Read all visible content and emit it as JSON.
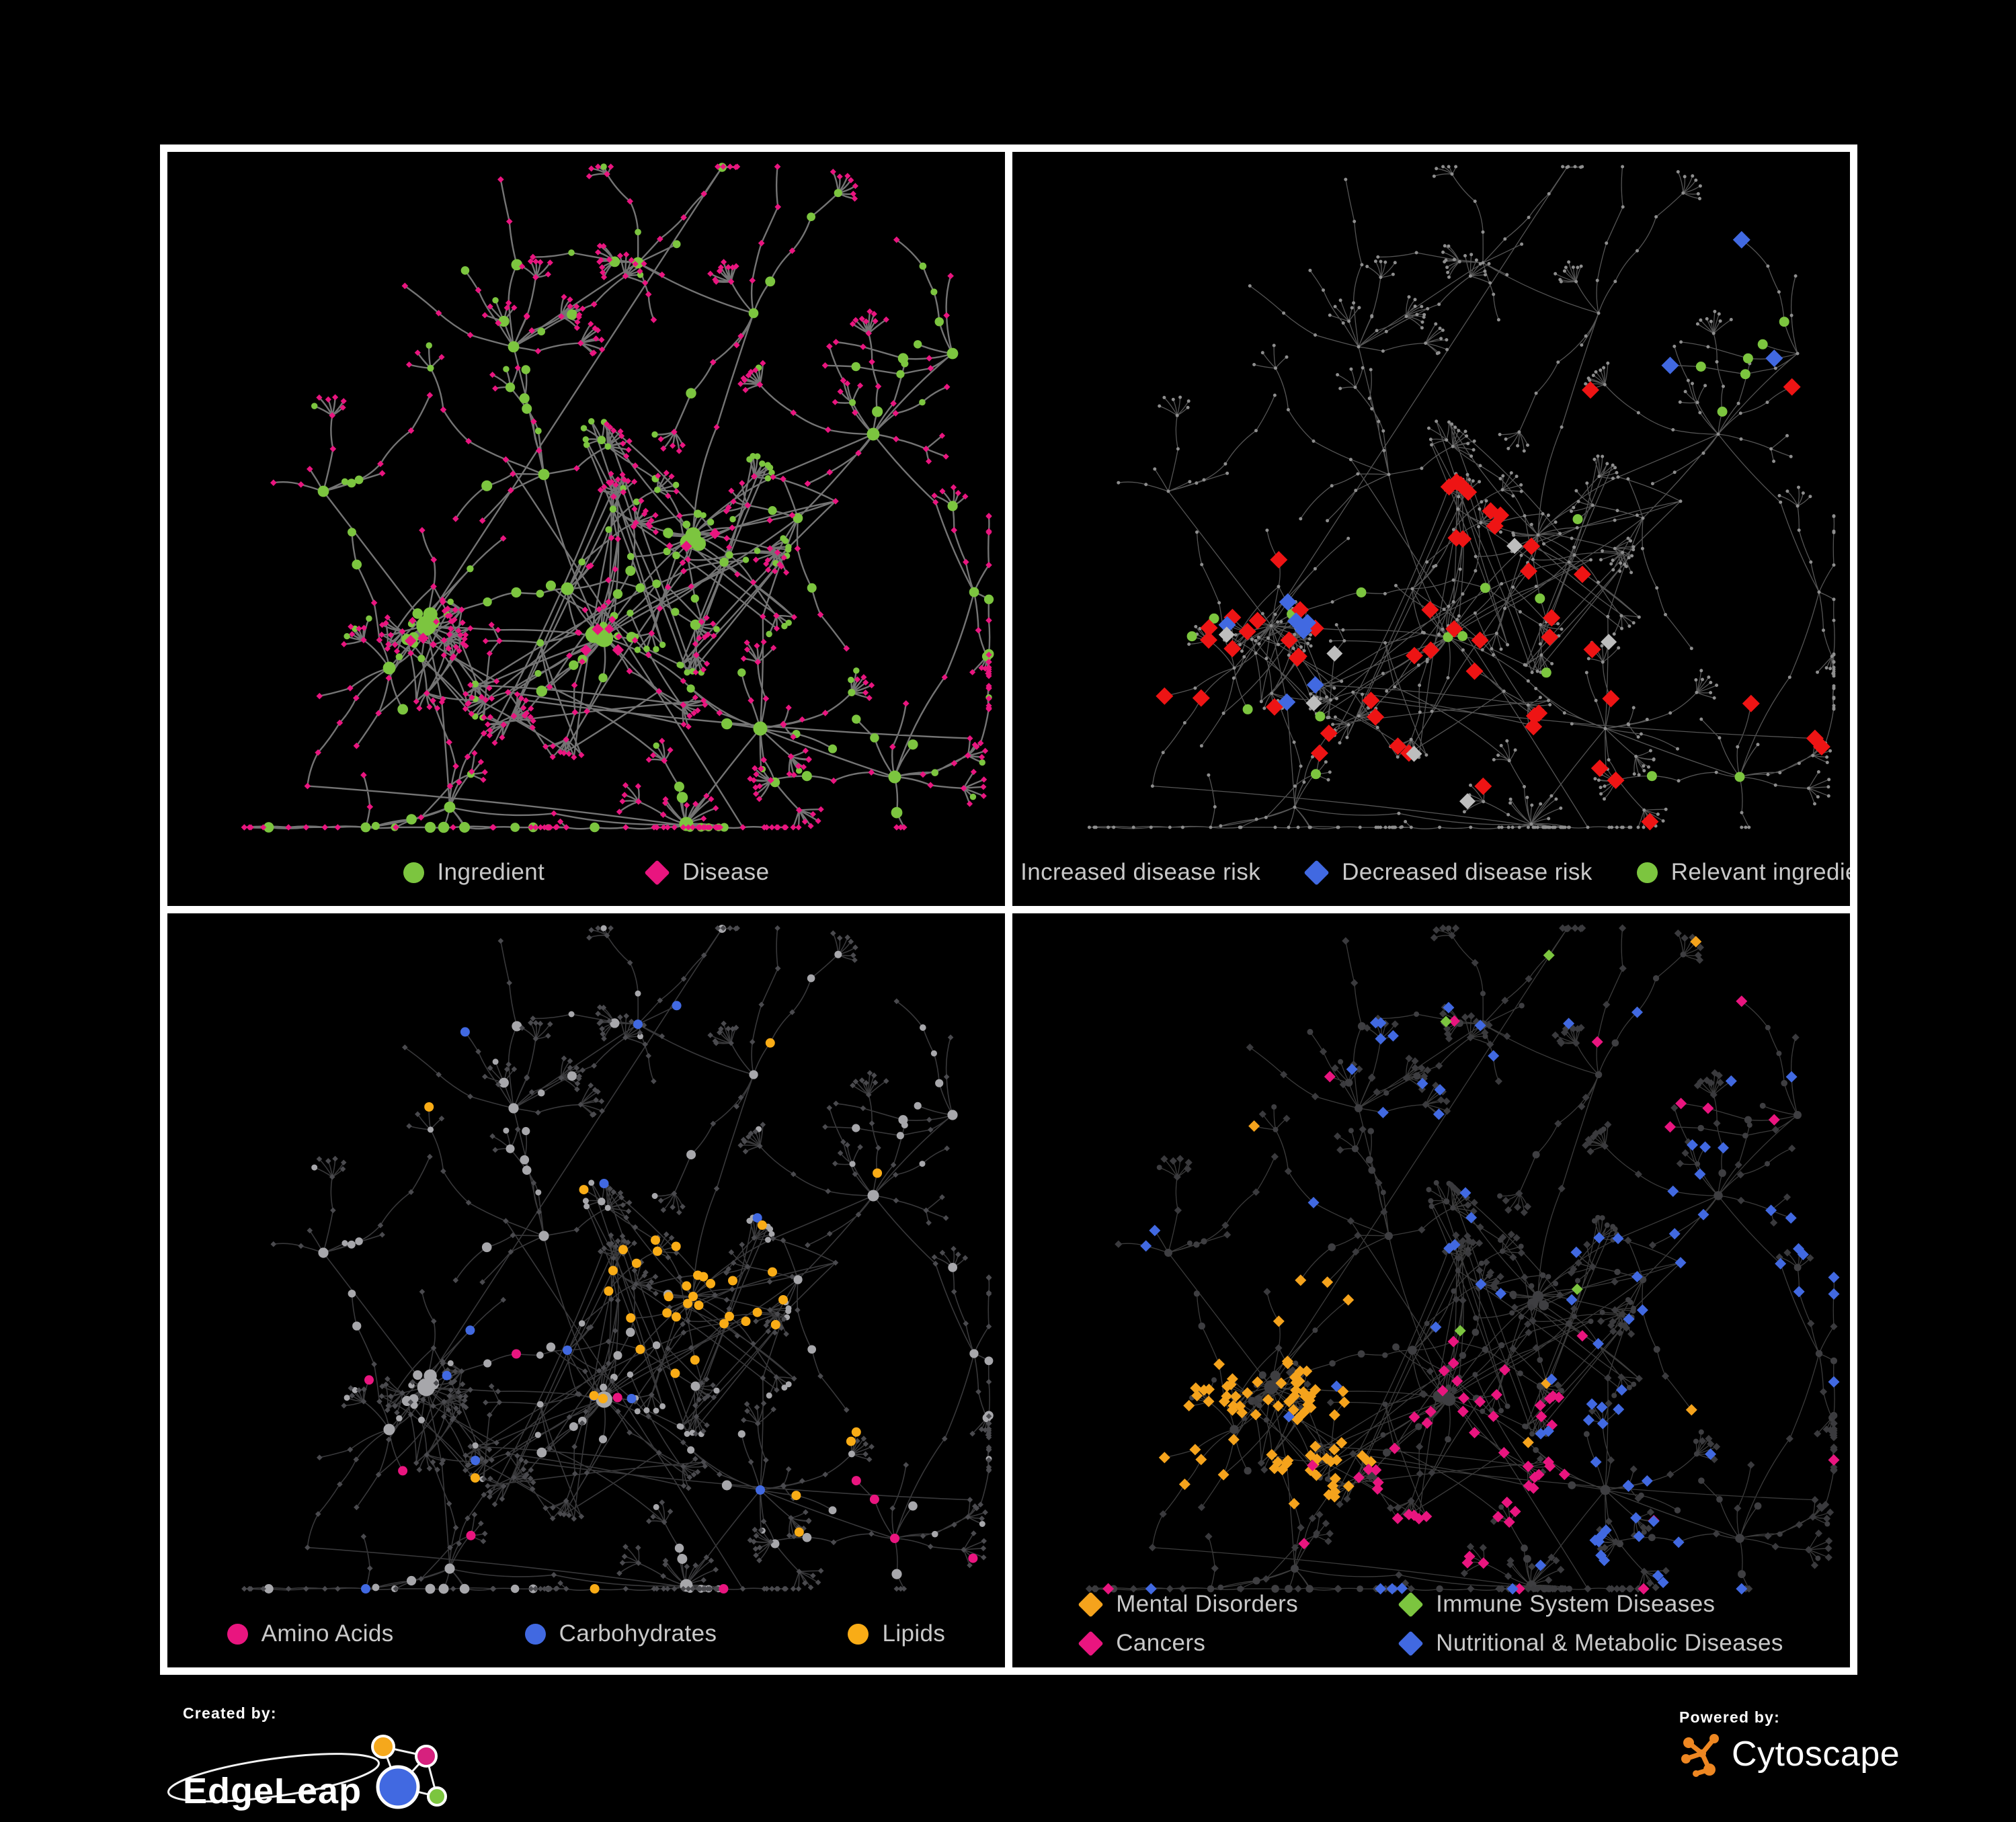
{
  "figure": {
    "background": "#000000",
    "frame_color": "#ffffff",
    "legend_text_color": "#C9C9C9"
  },
  "panels": [
    {
      "id": "ingredient-disease",
      "legend": [
        {
          "label": "Ingredient",
          "shape": "circle",
          "color": "#7CC53F"
        },
        {
          "label": "Disease",
          "shape": "diamond",
          "color": "#E9157F"
        }
      ]
    },
    {
      "id": "disease-risk",
      "legend": [
        {
          "label": "Increased disease risk",
          "shape": "diamond",
          "color": "#EE1414"
        },
        {
          "label": "Decreased disease risk",
          "shape": "diamond",
          "color": "#4169E1"
        },
        {
          "label": "Relevant ingredient",
          "shape": "circle",
          "color": "#7CC53F"
        }
      ]
    },
    {
      "id": "macronutrients",
      "legend": [
        {
          "label": "Amino Acids",
          "shape": "circle",
          "color": "#E9157F"
        },
        {
          "label": "Carbohydrates",
          "shape": "circle",
          "color": "#4169E1"
        },
        {
          "label": "Lipids",
          "shape": "circle",
          "color": "#F9AC16"
        }
      ]
    },
    {
      "id": "disease-categories",
      "legend_layout": "grid",
      "legend": [
        {
          "label": "Mental Disorders",
          "shape": "diamond",
          "color": "#F5A31C"
        },
        {
          "label": "Cancers",
          "shape": "diamond",
          "color": "#E9157F"
        },
        {
          "label": "Immune System Diseases",
          "shape": "diamond",
          "color": "#7CC53F"
        },
        {
          "label": "Nutritional & Metabolic Diseases",
          "shape": "diamond",
          "color": "#4169E1"
        }
      ]
    }
  ],
  "footer": {
    "created_by": {
      "label": "Created by:",
      "brand": "EdgeLeap"
    },
    "powered_by": {
      "label": "Powered by:",
      "brand": "Cytoscape"
    }
  },
  "chart_data": [
    {
      "type": "network",
      "panel": "top-left",
      "description": "Ingredient-disease association network: green circles are food ingredients (larger = higher degree hubs), magenta diamonds are diseases; grey curved edges link associated ingredient-disease pairs. Dense hairball clusters at centre-left and centre, star-shaped leaf fans of disease diamonds on the periphery.",
      "legend": [
        {
          "label": "Ingredient",
          "shape": "circle",
          "color": "#7CC53F",
          "approx_count": 200
        },
        {
          "label": "Disease",
          "shape": "diamond",
          "color": "#E9157F",
          "approx_count": 480
        }
      ],
      "approx_total_nodes": 680,
      "edge_color": "#7A7A7A",
      "layout": "organic force-directed, same topology as other three panels"
    },
    {
      "type": "network",
      "panel": "top-right",
      "description": "Same network rendered with all nodes as small dim grey dots; highlighted large diamonds mark disease-risk evidence and green circles mark relevant ingredients, concentrated in the two central clusters.",
      "legend": [
        {
          "label": "Increased disease risk",
          "shape": "diamond",
          "color": "#EE1414",
          "approx_count": 40
        },
        {
          "label": "Decreased disease risk",
          "shape": "diamond",
          "color": "#4169E1",
          "approx_count": 10
        },
        {
          "label": "Relevant ingredient",
          "shape": "circle",
          "color": "#7CC53F",
          "approx_count": 30
        }
      ],
      "also_visible": [
        {
          "label": "neutral / no effect",
          "shape": "diamond",
          "color": "#BDBDBD",
          "approx_count": 7
        }
      ],
      "edge_color": "#696969"
    },
    {
      "type": "network",
      "panel": "bottom-left",
      "description": "Same network with ingredients as grey circles and diseases as small dark-grey diamonds; ingredient nodes recoloured by macronutrient class - Lipids (orange, dense patch above centre plus scattered), Amino Acids (pink, scattered, extra in lower right), Carbohydrates (blue, few).",
      "legend": [
        {
          "label": "Amino Acids",
          "shape": "circle",
          "color": "#E9157F",
          "approx_count": 25
        },
        {
          "label": "Carbohydrates",
          "shape": "circle",
          "color": "#4169E1",
          "approx_count": 12
        },
        {
          "label": "Lipids",
          "shape": "circle",
          "color": "#F9AC16",
          "approx_count": 65
        }
      ],
      "edge_color": "#86868B"
    },
    {
      "type": "network",
      "panel": "bottom-right",
      "description": "Same network with all nodes dark charcoal diamonds/circles; disease diamonds recoloured by disease category - Mental Disorders (orange cluster, mid-left), Cancers (magenta, central band), Nutritional & Metabolic Diseases (blue, scattered right and top), Immune System Diseases (green, rare scattered).",
      "legend": [
        {
          "label": "Mental Disorders",
          "shape": "diamond",
          "color": "#F5A31C",
          "approx_count": 75
        },
        {
          "label": "Cancers",
          "shape": "diamond",
          "color": "#E9157F",
          "approx_count": 55
        },
        {
          "label": "Immune System Diseases",
          "shape": "diamond",
          "color": "#7CC53F",
          "approx_count": 10
        },
        {
          "label": "Nutritional & Metabolic Diseases",
          "shape": "diamond",
          "color": "#4169E1",
          "approx_count": 90
        }
      ],
      "edge_color": "#767676"
    }
  ]
}
